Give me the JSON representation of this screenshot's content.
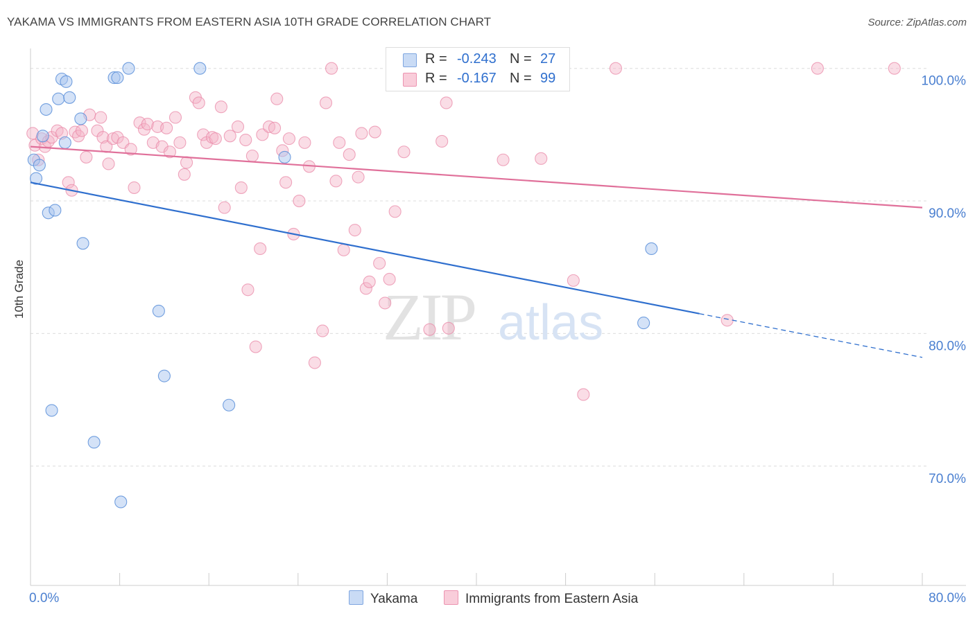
{
  "header": {
    "title": "YAKAMA VS IMMIGRANTS FROM EASTERN ASIA 10TH GRADE CORRELATION CHART",
    "source": "Source: ZipAtlas.com"
  },
  "watermark": {
    "zip": "ZIP",
    "atlas": "atlas"
  },
  "legend": {
    "rows": [
      {
        "r_label": "R =",
        "r_value": "-0.243",
        "n_label": "N =",
        "n_value": "27",
        "color": "#a9c5ef"
      },
      {
        "r_label": "R =",
        "r_value": "-0.167",
        "n_label": "N =",
        "n_value": "99",
        "color": "#f5b4c8"
      }
    ]
  },
  "bottom_legend": [
    {
      "label": "Yakama",
      "color": "#a9c5ef"
    },
    {
      "label": "Immigrants from Eastern Asia",
      "color": "#f5b4c8"
    }
  ],
  "chart_data": {
    "type": "scatter",
    "title": "YAKAMA VS IMMIGRANTS FROM EASTERN ASIA 10TH GRADE CORRELATION CHART",
    "ylabel": "10th Grade",
    "xlabel": "",
    "x_tick_labels": [
      "0.0%",
      "80.0%"
    ],
    "y_tick_labels": [
      "100.0%",
      "90.0%",
      "80.0%",
      "70.0%"
    ],
    "y_ticks": [
      100,
      90,
      80,
      70
    ],
    "xlim": [
      0,
      80
    ],
    "ylim": [
      61,
      101.5
    ],
    "grid": "horizontal dashed",
    "legend_position": "top-center",
    "colors": {
      "yakama": "#5b8fd9",
      "yakama_fill": "#a9c5ef",
      "yakama_line": "#2f6fce",
      "eastern_asia": "#e98aa8",
      "eastern_asia_fill": "#f5b4c8",
      "eastern_asia_line": "#e0709a"
    },
    "series": [
      {
        "name": "Yakama",
        "key": "yakama",
        "points": [
          [
            0.3,
            93.1
          ],
          [
            0.5,
            91.7
          ],
          [
            0.8,
            92.7
          ],
          [
            1.1,
            94.9
          ],
          [
            1.4,
            96.9
          ],
          [
            1.6,
            89.1
          ],
          [
            1.9,
            74.2
          ],
          [
            2.2,
            89.3
          ],
          [
            2.5,
            97.7
          ],
          [
            2.8,
            99.2
          ],
          [
            3.1,
            94.4
          ],
          [
            3.2,
            99.0
          ],
          [
            3.5,
            97.8
          ],
          [
            4.5,
            96.2
          ],
          [
            4.7,
            86.8
          ],
          [
            5.7,
            71.8
          ],
          [
            7.5,
            99.3
          ],
          [
            7.8,
            99.3
          ],
          [
            8.1,
            67.3
          ],
          [
            8.8,
            100.0
          ],
          [
            11.5,
            81.7
          ],
          [
            12.0,
            76.8
          ],
          [
            15.2,
            100.0
          ],
          [
            17.8,
            74.6
          ],
          [
            22.8,
            93.3
          ],
          [
            55.7,
            86.4
          ],
          [
            55.0,
            80.8
          ]
        ],
        "trend": {
          "x0": 0,
          "y0": 91.4,
          "x1": 60,
          "y1": 81.5,
          "dash_to_x": 80,
          "dash_to_y": 78.2
        }
      },
      {
        "name": "Immigrants from Eastern Asia",
        "key": "eastern_asia",
        "points": [
          [
            0.4,
            94.2
          ],
          [
            0.7,
            93.1
          ],
          [
            1.0,
            94.7
          ],
          [
            1.3,
            94.1
          ],
          [
            1.6,
            94.5
          ],
          [
            1.9,
            94.8
          ],
          [
            2.4,
            95.3
          ],
          [
            2.8,
            95.1
          ],
          [
            3.4,
            91.4
          ],
          [
            3.7,
            90.8
          ],
          [
            4.0,
            95.2
          ],
          [
            4.3,
            94.9
          ],
          [
            4.6,
            95.3
          ],
          [
            5.0,
            93.3
          ],
          [
            5.3,
            96.5
          ],
          [
            6.0,
            95.3
          ],
          [
            6.3,
            96.3
          ],
          [
            6.5,
            94.8
          ],
          [
            6.8,
            94.1
          ],
          [
            7.0,
            92.8
          ],
          [
            7.4,
            94.7
          ],
          [
            7.8,
            94.8
          ],
          [
            8.3,
            94.4
          ],
          [
            9.0,
            93.9
          ],
          [
            9.3,
            91.0
          ],
          [
            9.8,
            95.9
          ],
          [
            10.2,
            95.4
          ],
          [
            10.5,
            95.8
          ],
          [
            11.0,
            94.4
          ],
          [
            11.4,
            95.6
          ],
          [
            11.8,
            94.1
          ],
          [
            12.2,
            95.5
          ],
          [
            12.5,
            93.7
          ],
          [
            13.0,
            96.3
          ],
          [
            13.4,
            94.4
          ],
          [
            13.8,
            92.0
          ],
          [
            14.0,
            92.9
          ],
          [
            14.8,
            97.8
          ],
          [
            15.1,
            97.4
          ],
          [
            15.5,
            95.0
          ],
          [
            15.8,
            94.4
          ],
          [
            16.3,
            94.8
          ],
          [
            16.6,
            94.7
          ],
          [
            17.1,
            97.1
          ],
          [
            17.4,
            89.5
          ],
          [
            17.9,
            94.9
          ],
          [
            18.6,
            95.6
          ],
          [
            18.9,
            91.0
          ],
          [
            19.3,
            94.6
          ],
          [
            19.5,
            83.3
          ],
          [
            19.9,
            93.4
          ],
          [
            20.2,
            79.0
          ],
          [
            20.6,
            86.4
          ],
          [
            20.8,
            95.0
          ],
          [
            21.4,
            95.6
          ],
          [
            21.9,
            95.5
          ],
          [
            22.1,
            97.7
          ],
          [
            22.6,
            93.8
          ],
          [
            22.9,
            91.4
          ],
          [
            23.2,
            94.7
          ],
          [
            23.6,
            87.5
          ],
          [
            24.1,
            90.0
          ],
          [
            24.6,
            94.4
          ],
          [
            25.0,
            92.6
          ],
          [
            25.5,
            77.8
          ],
          [
            26.2,
            80.2
          ],
          [
            26.5,
            97.4
          ],
          [
            27.0,
            100.0
          ],
          [
            27.4,
            91.5
          ],
          [
            27.7,
            94.4
          ],
          [
            28.1,
            86.3
          ],
          [
            28.6,
            93.5
          ],
          [
            29.1,
            87.8
          ],
          [
            29.4,
            91.8
          ],
          [
            29.7,
            95.1
          ],
          [
            30.1,
            83.4
          ],
          [
            30.4,
            83.9
          ],
          [
            30.9,
            95.2
          ],
          [
            31.3,
            85.3
          ],
          [
            31.8,
            82.3
          ],
          [
            32.2,
            84.1
          ],
          [
            32.7,
            89.2
          ],
          [
            33.5,
            93.7
          ],
          [
            35.8,
            80.3
          ],
          [
            36.6,
            100.0
          ],
          [
            36.9,
            94.5
          ],
          [
            37.3,
            97.4
          ],
          [
            37.5,
            80.4
          ],
          [
            38.1,
            99.3
          ],
          [
            40.4,
            100.0
          ],
          [
            42.4,
            93.1
          ],
          [
            45.8,
            93.2
          ],
          [
            48.7,
            84.0
          ],
          [
            49.6,
            75.4
          ],
          [
            52.5,
            100.0
          ],
          [
            62.5,
            81.0
          ],
          [
            70.6,
            100.0
          ],
          [
            77.5,
            100.0
          ],
          [
            0.2,
            95.1
          ]
        ],
        "trend": {
          "x0": 0,
          "y0": 94.1,
          "x1": 80,
          "y1": 89.5
        }
      }
    ]
  }
}
